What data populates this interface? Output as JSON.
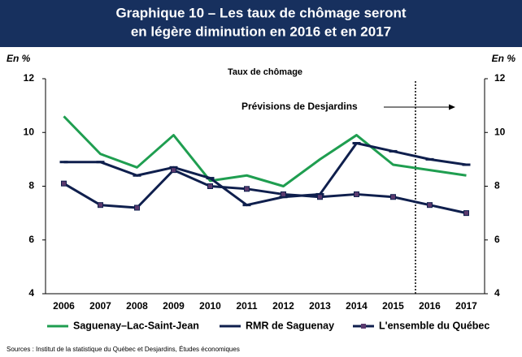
{
  "chart_data": {
    "type": "line",
    "title": [
      "Graphique 10 – Les taux de chômage seront",
      "en légère diminution en 2016 et en 2017"
    ],
    "subtitle": "Taux de chômage",
    "ylabel": "En %",
    "y2label": "En %",
    "annotation": "Prévisions de Desjardins",
    "source": "Sources : Institut de la statistique du Québec et Desjardins, Études économiques",
    "categories": [
      "2006",
      "2007",
      "2008",
      "2009",
      "2010",
      "2011",
      "2012",
      "2013",
      "2014",
      "2015",
      "2016",
      "2017"
    ],
    "series": [
      {
        "name": "Saguenay–Lac-Saint-Jean",
        "color": "#1f9e50",
        "marker": "none",
        "values": [
          10.6,
          9.2,
          8.7,
          9.9,
          8.2,
          8.4,
          8.0,
          9.0,
          9.9,
          8.8,
          8.6,
          8.4
        ]
      },
      {
        "name": "RMR de Saguenay",
        "color": "#0f1f4d",
        "marker": "dash",
        "values": [
          8.9,
          8.9,
          8.4,
          8.7,
          8.3,
          7.3,
          7.6,
          7.7,
          9.6,
          9.3,
          9.0,
          8.8
        ]
      },
      {
        "name": "L'ensemble du Québec",
        "color": "#0f1f4d",
        "marker": "square",
        "marker_color": "#5b3a6e",
        "values": [
          8.1,
          7.3,
          7.2,
          8.6,
          8.0,
          7.9,
          7.7,
          7.6,
          7.7,
          7.6,
          7.3,
          7.0
        ]
      }
    ],
    "ylim": [
      4,
      12
    ],
    "yticks": [
      4,
      6,
      8,
      10,
      12
    ],
    "y2lim": [
      4,
      12
    ],
    "y2ticks": [
      4,
      6,
      8,
      10,
      12
    ],
    "grid": false,
    "legend": "bottom"
  }
}
